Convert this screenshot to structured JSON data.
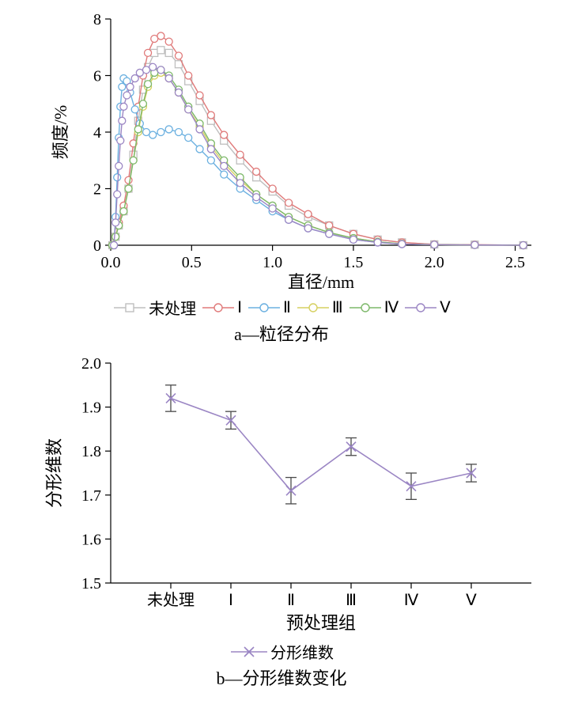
{
  "chartA": {
    "type": "line-marker",
    "xlabel": "直径/mm",
    "ylabel": "频度/%",
    "xlim": [
      0,
      2.6
    ],
    "ylim": [
      0,
      8
    ],
    "xticks": [
      0.0,
      0.5,
      1.0,
      1.5,
      2.0,
      2.5
    ],
    "xtick_labels": [
      "0.0",
      "0.5",
      "1.0",
      "1.5",
      "2.0",
      "2.5"
    ],
    "yticks": [
      0,
      2,
      4,
      6,
      8
    ],
    "ytick_labels": [
      "0",
      "2",
      "4",
      "6",
      "8"
    ],
    "background_color": "#ffffff",
    "axis_color": "#000000",
    "label_fontsize": 22,
    "tick_fontsize": 20,
    "marker_radius": 4.5,
    "line_width": 1.4,
    "caption": "a—粒径分布",
    "series": [
      {
        "name": "未处理",
        "label": "未处理",
        "color": "#bfbfbf",
        "marker": "square",
        "x": [
          0.01,
          0.03,
          0.05,
          0.08,
          0.11,
          0.14,
          0.17,
          0.2,
          0.23,
          0.27,
          0.31,
          0.36,
          0.42,
          0.48,
          0.55,
          0.62,
          0.7,
          0.8,
          0.9,
          1.0,
          1.1,
          1.22,
          1.35,
          1.5,
          1.65,
          1.8,
          2.0,
          2.25,
          2.55
        ],
        "y": [
          0.0,
          0.3,
          0.7,
          1.2,
          2.0,
          3.2,
          4.4,
          5.5,
          6.3,
          6.8,
          6.9,
          6.8,
          6.4,
          5.8,
          5.1,
          4.4,
          3.7,
          3.0,
          2.4,
          1.9,
          1.4,
          1.0,
          0.7,
          0.4,
          0.2,
          0.1,
          0.03,
          0.02,
          0.0
        ]
      },
      {
        "name": "I",
        "label": "Ⅰ",
        "color": "#e07a7a",
        "marker": "circle",
        "x": [
          0.01,
          0.03,
          0.05,
          0.08,
          0.11,
          0.14,
          0.17,
          0.2,
          0.23,
          0.27,
          0.31,
          0.36,
          0.42,
          0.48,
          0.55,
          0.62,
          0.7,
          0.8,
          0.9,
          1.0,
          1.1,
          1.22,
          1.35,
          1.5,
          1.65,
          1.8,
          2.0,
          2.25,
          2.55
        ],
        "y": [
          0.0,
          0.3,
          0.8,
          1.4,
          2.3,
          3.6,
          4.9,
          6.0,
          6.8,
          7.3,
          7.4,
          7.2,
          6.7,
          6.0,
          5.3,
          4.6,
          3.9,
          3.2,
          2.6,
          2.0,
          1.5,
          1.1,
          0.7,
          0.4,
          0.2,
          0.1,
          0.03,
          0.02,
          0.0
        ]
      },
      {
        "name": "II",
        "label": "Ⅱ",
        "color": "#6bb0e0",
        "marker": "circle",
        "x": [
          0.02,
          0.03,
          0.04,
          0.05,
          0.06,
          0.07,
          0.08,
          0.1,
          0.12,
          0.15,
          0.18,
          0.22,
          0.26,
          0.31,
          0.36,
          0.42,
          0.48,
          0.55,
          0.62,
          0.7,
          0.8,
          0.9,
          1.0,
          1.1,
          1.22,
          1.35,
          1.5,
          1.65,
          1.8,
          2.0,
          2.25,
          2.55
        ],
        "y": [
          0.0,
          1.0,
          2.4,
          3.8,
          4.9,
          5.6,
          5.9,
          5.8,
          5.4,
          4.8,
          4.3,
          4.0,
          3.9,
          4.0,
          4.1,
          4.0,
          3.8,
          3.4,
          3.0,
          2.5,
          2.0,
          1.6,
          1.2,
          0.9,
          0.6,
          0.4,
          0.2,
          0.1,
          0.04,
          0.02,
          0.01,
          0.0
        ]
      },
      {
        "name": "III",
        "label": "Ⅲ",
        "color": "#d6d060",
        "marker": "circle",
        "x": [
          0.01,
          0.03,
          0.05,
          0.08,
          0.11,
          0.14,
          0.17,
          0.2,
          0.23,
          0.27,
          0.31,
          0.36,
          0.42,
          0.48,
          0.55,
          0.62,
          0.7,
          0.8,
          0.9,
          1.0,
          1.1,
          1.22,
          1.35,
          1.5,
          1.65,
          1.8,
          2.0,
          2.25,
          2.55
        ],
        "y": [
          0.0,
          0.3,
          0.7,
          1.2,
          2.0,
          3.0,
          4.0,
          4.9,
          5.6,
          6.0,
          6.1,
          5.9,
          5.4,
          4.8,
          4.2,
          3.5,
          2.9,
          2.3,
          1.8,
          1.4,
          1.0,
          0.7,
          0.45,
          0.25,
          0.12,
          0.05,
          0.02,
          0.01,
          0.0
        ]
      },
      {
        "name": "IV",
        "label": "Ⅳ",
        "color": "#7db86a",
        "marker": "circle",
        "x": [
          0.01,
          0.03,
          0.05,
          0.08,
          0.11,
          0.14,
          0.17,
          0.2,
          0.23,
          0.27,
          0.31,
          0.36,
          0.42,
          0.48,
          0.55,
          0.62,
          0.7,
          0.8,
          0.9,
          1.0,
          1.1,
          1.22,
          1.35,
          1.5,
          1.65,
          1.8,
          2.0,
          2.25,
          2.55
        ],
        "y": [
          0.0,
          0.3,
          0.7,
          1.2,
          2.0,
          3.0,
          4.1,
          5.0,
          5.7,
          6.1,
          6.2,
          6.0,
          5.5,
          4.9,
          4.3,
          3.6,
          3.0,
          2.4,
          1.8,
          1.4,
          1.0,
          0.7,
          0.45,
          0.25,
          0.12,
          0.05,
          0.02,
          0.01,
          0.0
        ]
      },
      {
        "name": "V",
        "label": "Ⅴ",
        "color": "#9b86c4",
        "marker": "circle",
        "x": [
          0.02,
          0.03,
          0.04,
          0.05,
          0.06,
          0.07,
          0.08,
          0.1,
          0.12,
          0.15,
          0.18,
          0.22,
          0.26,
          0.31,
          0.36,
          0.42,
          0.48,
          0.55,
          0.62,
          0.7,
          0.8,
          0.9,
          1.0,
          1.1,
          1.22,
          1.35,
          1.5,
          1.65,
          1.8,
          2.0,
          2.25,
          2.55
        ],
        "y": [
          0.0,
          0.8,
          1.8,
          2.8,
          3.7,
          4.4,
          4.9,
          5.3,
          5.6,
          5.9,
          6.1,
          6.2,
          6.3,
          6.2,
          5.9,
          5.4,
          4.8,
          4.1,
          3.4,
          2.8,
          2.2,
          1.7,
          1.3,
          0.9,
          0.6,
          0.4,
          0.2,
          0.1,
          0.04,
          0.02,
          0.01,
          0.0
        ]
      }
    ]
  },
  "chartB": {
    "type": "line-marker-errorbar",
    "xlabel": "预处理组",
    "ylabel": "分形维数",
    "categories": [
      "未处理",
      "Ⅰ",
      "Ⅱ",
      "Ⅲ",
      "Ⅳ",
      "Ⅴ"
    ],
    "ylim": [
      1.5,
      2.0
    ],
    "yticks": [
      1.5,
      1.6,
      1.7,
      1.8,
      1.9,
      2.0
    ],
    "ytick_labels": [
      "1.5",
      "1.6",
      "1.7",
      "1.8",
      "1.9",
      "2.0"
    ],
    "values": [
      1.92,
      1.87,
      1.71,
      1.81,
      1.72,
      1.75
    ],
    "errors": [
      0.03,
      0.02,
      0.03,
      0.02,
      0.03,
      0.02
    ],
    "line_color": "#9b86c4",
    "marker_color": "#9b86c4",
    "error_color": "#4a4a4a",
    "line_width": 1.6,
    "marker_size": 6,
    "caption": "b—分形维数变化",
    "legend_label": "分形维数",
    "background_color": "#ffffff",
    "axis_color": "#000000",
    "label_fontsize": 22,
    "tick_fontsize": 20
  }
}
